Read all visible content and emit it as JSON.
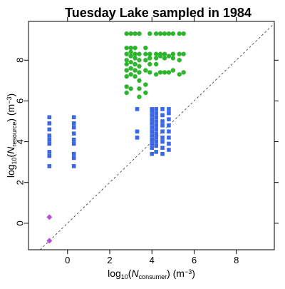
{
  "chart_data": {
    "type": "scatter",
    "title": "Tuesday Lake sampled in 1984",
    "xlabel": [
      "log",
      "10",
      "(",
      "N",
      "consumer",
      ") (m",
      "−3",
      ")"
    ],
    "ylabel": [
      "log",
      "10",
      "(",
      "N",
      "resource",
      ") (m",
      "−3",
      ")"
    ],
    "xlim": [
      -1.85,
      9.8
    ],
    "ylim": [
      -1.3,
      9.9
    ],
    "xticks": [
      0,
      2,
      4,
      6,
      8
    ],
    "yticks": [
      0,
      2,
      4,
      6,
      8
    ],
    "series": [
      {
        "color": "#b44fd8",
        "marker": "diamond",
        "x": [
          -0.86,
          -0.86
        ],
        "y": [
          0.3,
          -0.86
        ]
      },
      {
        "color": "#3a66e8",
        "marker": "square",
        "x": [
          -0.86,
          -0.86,
          -0.86,
          -0.86,
          -0.86,
          -0.86,
          -0.86,
          -0.86,
          -0.86,
          0.3,
          0.3,
          0.3,
          0.3,
          0.3,
          0.3,
          0.3,
          0.3,
          0.3,
          3.3,
          3.3,
          3.3,
          4.0,
          4.0,
          4.0,
          4.0,
          4.0,
          4.0,
          4.0,
          4.0,
          4.0,
          4.0,
          4.0,
          4.0,
          4.2,
          4.2,
          4.2,
          4.2,
          4.2,
          4.2,
          4.2,
          4.2,
          4.2,
          4.2,
          4.2,
          4.5,
          4.5,
          4.5,
          4.5,
          4.5,
          4.5,
          4.5,
          4.5,
          4.5,
          4.8,
          4.8,
          4.8,
          4.8,
          4.8,
          4.8,
          4.8,
          4.8
        ],
        "y": [
          2.8,
          3.3,
          3.5,
          3.9,
          4.1,
          4.3,
          4.6,
          4.9,
          5.2,
          2.8,
          3.2,
          3.4,
          3.9,
          4.1,
          4.4,
          4.7,
          4.9,
          5.2,
          4.2,
          4.5,
          5.6,
          3.4,
          3.7,
          3.9,
          4.1,
          4.3,
          4.5,
          4.7,
          4.9,
          5.1,
          5.3,
          5.5,
          5.6,
          3.5,
          3.8,
          4.0,
          4.2,
          4.4,
          4.6,
          4.8,
          5.0,
          5.2,
          5.4,
          5.6,
          3.4,
          3.7,
          4.0,
          4.2,
          4.5,
          4.8,
          5.0,
          5.3,
          5.6,
          3.6,
          3.9,
          4.2,
          4.5,
          4.8,
          5.1,
          5.4,
          5.6
        ]
      },
      {
        "color": "#2db52d",
        "marker": "circle",
        "x": [
          2.8,
          2.8,
          2.8,
          2.8,
          2.8,
          2.8,
          2.8,
          2.8,
          2.8,
          3.0,
          3.0,
          3.0,
          3.0,
          3.0,
          3.0,
          3.0,
          3.0,
          3.2,
          3.2,
          3.2,
          3.2,
          3.2,
          3.2,
          3.2,
          3.4,
          3.4,
          3.4,
          3.4,
          3.4,
          3.4,
          3.4,
          3.4,
          3.7,
          3.7,
          3.7,
          3.7,
          3.7,
          3.7,
          3.9,
          3.9,
          3.9,
          3.9,
          3.9,
          4.2,
          4.2,
          4.2,
          4.2,
          4.2,
          4.4,
          4.4,
          4.4,
          4.4,
          4.6,
          4.6,
          4.6,
          4.6,
          4.8,
          4.8,
          4.8,
          5.0,
          5.0,
          5.0,
          5.0,
          5.3,
          5.3,
          5.3,
          5.3,
          5.5,
          5.5,
          5.5
        ],
        "y": [
          6.4,
          6.7,
          7.2,
          7.5,
          7.8,
          8.0,
          8.3,
          8.6,
          9.3,
          6.6,
          7.3,
          7.6,
          7.9,
          8.2,
          8.4,
          8.6,
          9.3,
          7.2,
          7.5,
          7.8,
          8.1,
          8.3,
          8.6,
          9.3,
          6.2,
          6.6,
          7.0,
          7.4,
          7.7,
          8.0,
          8.3,
          9.3,
          6.4,
          6.8,
          7.5,
          8.0,
          8.3,
          8.6,
          7.4,
          7.8,
          8.1,
          8.3,
          9.3,
          7.3,
          7.8,
          8.1,
          8.3,
          9.3,
          7.4,
          8.2,
          8.3,
          9.3,
          7.4,
          8.1,
          8.3,
          9.3,
          7.4,
          8.2,
          9.3,
          7.5,
          8.1,
          8.3,
          9.3,
          7.3,
          8.0,
          8.3,
          9.3,
          7.4,
          8.3,
          9.3
        ]
      }
    ]
  }
}
